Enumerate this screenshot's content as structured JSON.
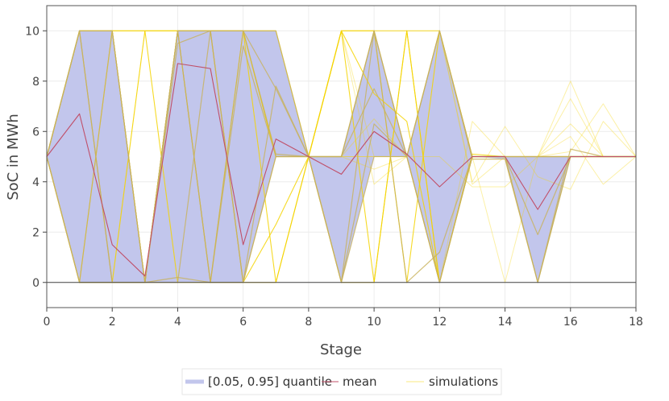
{
  "chart_data": {
    "type": "line",
    "xlabel": "Stage",
    "ylabel": "SoC in MWh",
    "xlim": [
      0,
      18
    ],
    "ylim": [
      -1,
      11
    ],
    "xticks": [
      0,
      2,
      4,
      6,
      8,
      10,
      12,
      14,
      16,
      18
    ],
    "yticks": [
      0,
      2,
      4,
      6,
      8,
      10
    ],
    "legend": {
      "placement": "bottom-center",
      "entries": [
        "[0.05, 0.95] quantile",
        "mean",
        "simulations"
      ]
    },
    "colors": {
      "band": "#c2c6ec",
      "mean": "#c0506a",
      "simulations": "#f5d300",
      "simulations_muted": "#c8b25a",
      "axis": "#444444",
      "grid": "#ececec",
      "plot_border": "#555555"
    },
    "x": [
      0,
      1,
      2,
      3,
      4,
      5,
      6,
      7,
      8,
      9,
      10,
      11,
      12,
      13,
      14,
      15,
      16,
      17,
      18
    ],
    "quantile_band": {
      "lower": [
        5,
        0,
        0,
        0,
        0,
        0,
        0,
        5,
        5,
        0,
        5,
        5,
        0,
        5,
        4.9,
        0,
        5,
        5,
        5
      ],
      "upper": [
        5,
        10,
        10,
        0,
        10,
        10,
        10,
        10,
        5,
        5,
        10,
        5,
        10,
        5,
        5,
        5,
        5,
        5,
        5
      ]
    },
    "mean": [
      5,
      6.7,
      1.5,
      0.25,
      8.7,
      8.5,
      1.5,
      5.7,
      5,
      4.3,
      6,
      5.1,
      3.8,
      5,
      5,
      2.9,
      5,
      5,
      5
    ],
    "simulations": [
      {
        "values": [
          5,
          10,
          10,
          0,
          10,
          10,
          10,
          10,
          5,
          5,
          10,
          5,
          10,
          5,
          5,
          5,
          5,
          5,
          5
        ],
        "style": "muted"
      },
      {
        "values": [
          5,
          0,
          0,
          0,
          10,
          0,
          0,
          5,
          5,
          0,
          10,
          5,
          0,
          5,
          5,
          0,
          5,
          5,
          5
        ],
        "style": "muted"
      },
      {
        "values": [
          5,
          10,
          0,
          0,
          10,
          10,
          0,
          7.8,
          5,
          5,
          7.7,
          5,
          0,
          5,
          5,
          0,
          5,
          5,
          5
        ],
        "style": "muted"
      },
      {
        "values": [
          5,
          0,
          10,
          0,
          0,
          10,
          10,
          5.1,
          5,
          0,
          5,
          5,
          10,
          5,
          5,
          5,
          5,
          5,
          5
        ],
        "style": "muted"
      },
      {
        "values": [
          5,
          10,
          10,
          0,
          9.5,
          10,
          0,
          5,
          5,
          5,
          10,
          0,
          1.2,
          5,
          5,
          1.9,
          5,
          5,
          5
        ],
        "style": "muted"
      },
      {
        "values": [
          5,
          0,
          0,
          0,
          0.2,
          0,
          10,
          7.7,
          5,
          0,
          6.3,
          5,
          10,
          4.9,
          4.9,
          0,
          5.3,
          5,
          5
        ],
        "style": "muted"
      },
      {
        "values": [
          5,
          10,
          0,
          0,
          10,
          0,
          9.4,
          5,
          5,
          5,
          10,
          5,
          0,
          5,
          5,
          5,
          5,
          5,
          5
        ],
        "style": "muted"
      },
      {
        "values": [
          5,
          0,
          10,
          10,
          0,
          0,
          10,
          0,
          5,
          10,
          0,
          10,
          0,
          5,
          5,
          5,
          5,
          5,
          5
        ],
        "style": "bright"
      },
      {
        "values": [
          5,
          10,
          10,
          0,
          10,
          10,
          0,
          2.3,
          5,
          10,
          10,
          0,
          10,
          5,
          5,
          5,
          5,
          5,
          5
        ],
        "style": "bright"
      },
      {
        "values": [
          5,
          10,
          10,
          10,
          10,
          10,
          10,
          10,
          5,
          10,
          10,
          10,
          10,
          5,
          5,
          5,
          5,
          5,
          5
        ],
        "style": "bright"
      },
      {
        "values": [
          5,
          0,
          0,
          10,
          10,
          0,
          0,
          0,
          5,
          0,
          0,
          10,
          0,
          5,
          5,
          5,
          5,
          5,
          5
        ],
        "style": "bright"
      },
      {
        "values": [
          5,
          10,
          10,
          0,
          10,
          10,
          10,
          5,
          5,
          10,
          7.5,
          6.4,
          0,
          5.1,
          5,
          5,
          5,
          5,
          5
        ],
        "style": "bright"
      },
      {
        "values": [
          5,
          0,
          0,
          0,
          10,
          10,
          10,
          5,
          5,
          5,
          5,
          5,
          0,
          6.4,
          5,
          5,
          6.3,
          5,
          5
        ],
        "style": "faint"
      },
      {
        "values": [
          5,
          10,
          10,
          0,
          10,
          10,
          10,
          5,
          5,
          5,
          4.5,
          5,
          10,
          3.9,
          5,
          5,
          5.2,
          7.1,
          5
        ],
        "style": "faint"
      },
      {
        "values": [
          5,
          10,
          10,
          0,
          10,
          10,
          10,
          5,
          5,
          5,
          5,
          5,
          0,
          5,
          0,
          5,
          7.3,
          5,
          5
        ],
        "style": "faint"
      },
      {
        "values": [
          5,
          0,
          0,
          0,
          10,
          10,
          10,
          5,
          5,
          10,
          3.9,
          5,
          5,
          3.8,
          3.8,
          5,
          8,
          5,
          5
        ],
        "style": "faint"
      },
      {
        "values": [
          5,
          10,
          10,
          0,
          10,
          10,
          10,
          5,
          5,
          10,
          5,
          5,
          10,
          4,
          6.2,
          4.2,
          3.7,
          6.4,
          5
        ],
        "style": "faint"
      },
      {
        "values": [
          5,
          10,
          0,
          10,
          10,
          10,
          10,
          5,
          5,
          5,
          6.5,
          5,
          0,
          5,
          5,
          5,
          5.8,
          3.9,
          5
        ],
        "style": "faint"
      }
    ]
  }
}
